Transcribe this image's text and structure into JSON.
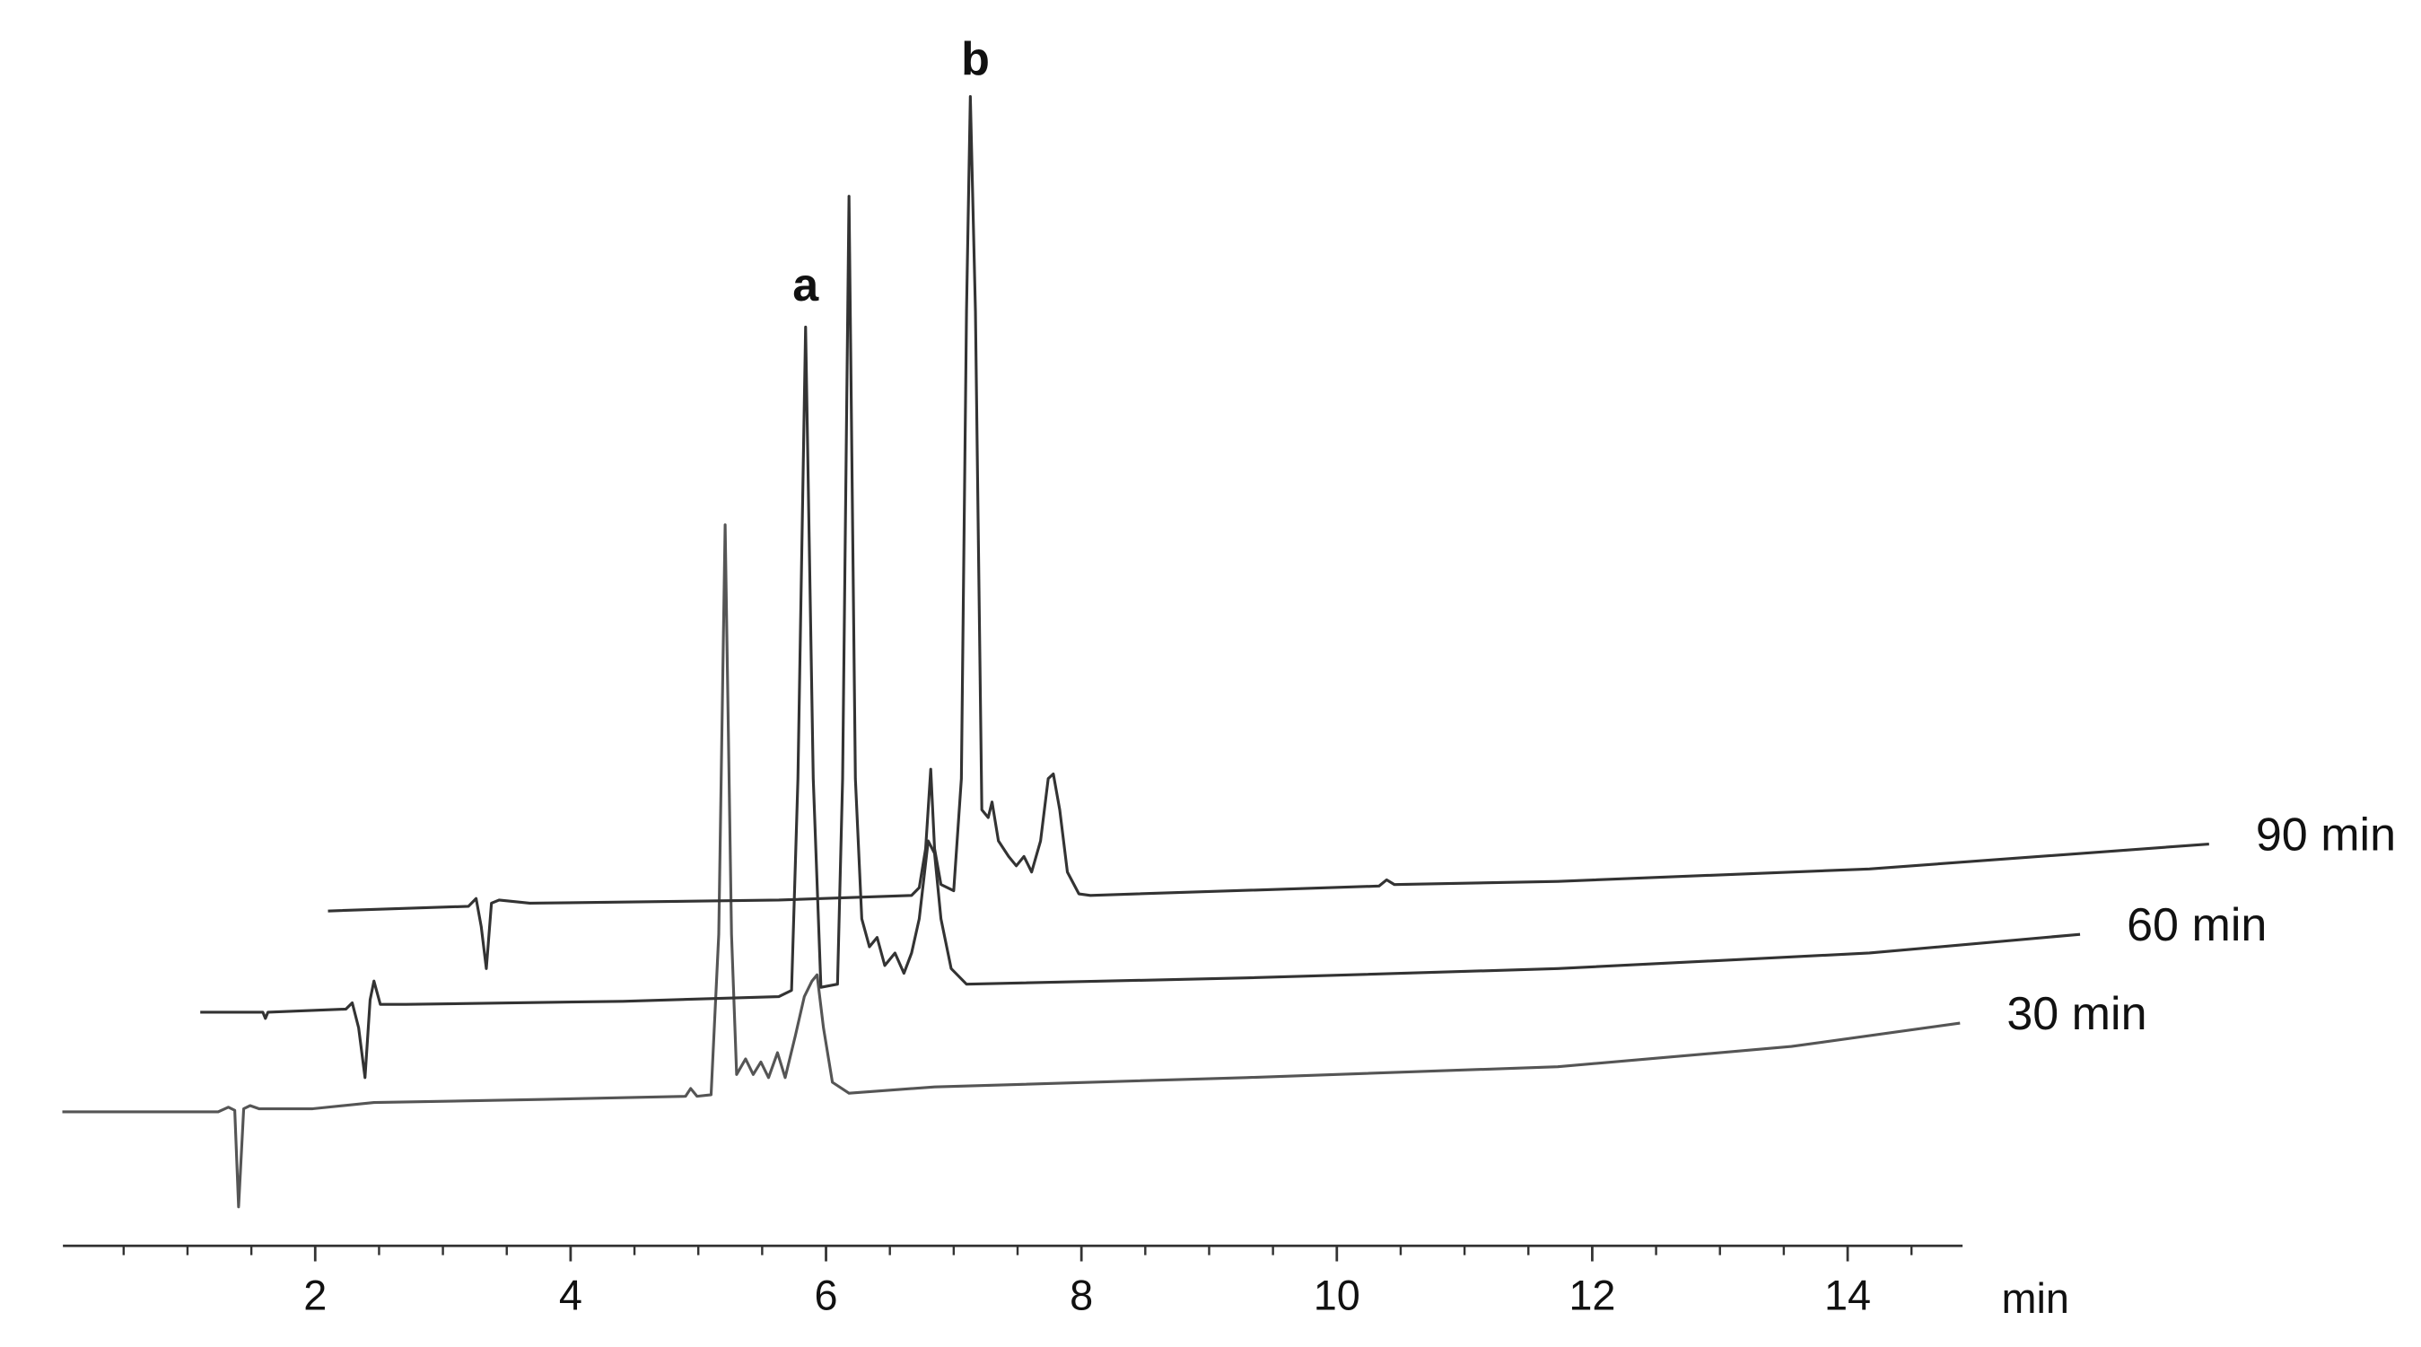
{
  "chart_data": {
    "type": "line",
    "x_label": "min",
    "xlim": [
      0,
      14.9
    ],
    "xticks": [
      2,
      4,
      6,
      8,
      10,
      12,
      14
    ],
    "xminorticks": [
      0.5,
      1,
      1.5,
      2.5,
      3,
      3.5,
      4.5,
      5,
      5.5,
      6.5,
      7,
      7.5,
      8.5,
      9,
      9.5,
      10.5,
      11,
      11.5,
      12.5,
      13,
      13.5,
      14.5
    ],
    "ylim": [
      0,
      80
    ],
    "series": [
      {
        "name": "30 min",
        "color": "#555555",
        "x": [
          0.02,
          1.24,
          1.32,
          1.37,
          1.4,
          1.44,
          1.49,
          1.56,
          1.98,
          2.46,
          3.8,
          4.9,
          4.94,
          4.99,
          5.1,
          5.16,
          5.21,
          5.26,
          5.3,
          5.37,
          5.43,
          5.49,
          5.55,
          5.62,
          5.68,
          5.76,
          5.83,
          5.89,
          5.93,
          5.98,
          6.05,
          6.18,
          6.85,
          9.29,
          11.73,
          13.56,
          14.88
        ],
        "values": [
          8.6,
          8.6,
          8.9,
          8.7,
          2.5,
          8.8,
          9.0,
          8.8,
          8.8,
          9.2,
          9.4,
          9.6,
          10.1,
          9.6,
          9.7,
          20.0,
          46.3,
          20.0,
          11.0,
          12.0,
          11.0,
          11.8,
          10.8,
          12.4,
          10.8,
          13.5,
          16.0,
          17.0,
          17.4,
          14.0,
          10.5,
          9.8,
          10.2,
          10.8,
          11.5,
          12.8,
          14.3
        ]
      },
      {
        "name": "60 min",
        "color": "#333333",
        "x": [
          1.1,
          1.59,
          1.61,
          1.63,
          2.24,
          2.29,
          2.34,
          2.39,
          2.43,
          2.46,
          2.51,
          2.71,
          4.41,
          5.63,
          5.73,
          5.78,
          5.84,
          5.9,
          5.96,
          6.09,
          6.13,
          6.18,
          6.23,
          6.28,
          6.34,
          6.4,
          6.46,
          6.54,
          6.61,
          6.67,
          6.73,
          6.8,
          6.85,
          6.9,
          6.98,
          7.1,
          9.29,
          11.73,
          14.17,
          15.82
        ],
        "values": [
          15.0,
          15.0,
          14.6,
          15.0,
          15.2,
          15.6,
          14.0,
          10.8,
          15.8,
          17.0,
          15.5,
          15.5,
          15.7,
          16.0,
          16.4,
          30.0,
          59.0,
          30.0,
          16.6,
          16.8,
          30.0,
          67.4,
          30.0,
          21.0,
          19.2,
          19.8,
          18.0,
          18.8,
          17.5,
          18.8,
          21.0,
          26.0,
          25.2,
          21.0,
          17.8,
          16.8,
          17.2,
          17.8,
          18.8,
          20.0
        ]
      },
      {
        "name": "90 min",
        "color": "#333333",
        "x": [
          2.1,
          3.2,
          3.26,
          3.3,
          3.34,
          3.38,
          3.44,
          3.68,
          5.63,
          6.67,
          6.73,
          6.78,
          6.82,
          6.85,
          6.9,
          7.0,
          7.06,
          7.1,
          7.13,
          7.17,
          7.22,
          7.27,
          7.3,
          7.35,
          7.43,
          7.49,
          7.55,
          7.61,
          7.68,
          7.74,
          7.78,
          7.83,
          7.89,
          7.98,
          8.07,
          10.33,
          10.39,
          10.45,
          11.73,
          14.17,
          16.83
        ],
        "values": [
          21.5,
          21.8,
          22.3,
          20.5,
          17.8,
          22.0,
          22.2,
          22.0,
          22.2,
          22.5,
          23.0,
          25.5,
          30.6,
          25.5,
          23.2,
          22.8,
          30.0,
          60.0,
          73.8,
          60.0,
          28.0,
          27.5,
          28.5,
          26.0,
          25.0,
          24.4,
          25.0,
          24.0,
          26.0,
          30.0,
          30.3,
          28.0,
          24.0,
          22.6,
          22.5,
          23.1,
          23.5,
          23.2,
          23.4,
          24.2,
          25.8
        ]
      }
    ],
    "annotations": [
      {
        "text": "a",
        "x": 5.84,
        "y": 61.5
      },
      {
        "text": "b",
        "x": 7.17,
        "y": 76
      }
    ]
  }
}
